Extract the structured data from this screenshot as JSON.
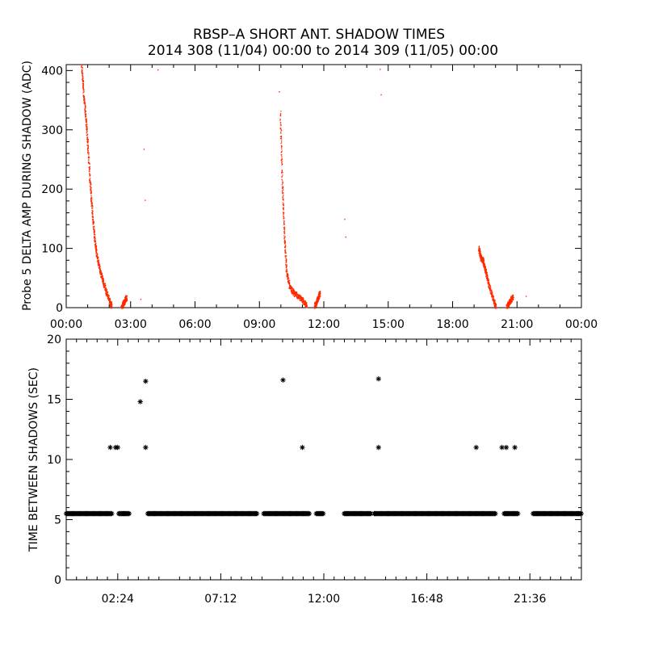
{
  "chart_data": [
    {
      "type": "scatter",
      "title": "RBSP–A SHORT ANT. SHADOW TIMES",
      "subtitle": "2014 308 (11/04) 00:00 to 2014 309 (11/05) 00:00",
      "xlabel": "",
      "ylabel": "Probe 5 DELTA AMP DURING SHADOW (ADC)",
      "xlim_hours": [
        0,
        24
      ],
      "ylim": [
        0,
        410
      ],
      "x_tick_labels": [
        "00:00",
        "03:00",
        "06:00",
        "09:00",
        "12:00",
        "15:00",
        "18:00",
        "21:00",
        "00:00"
      ],
      "y_tick_labels": [
        "0",
        "100",
        "200",
        "300",
        "400"
      ],
      "grid": false,
      "marker_color": "#ff2a00",
      "series": [
        {
          "description_x_units": "hours",
          "curves": [
            [
              [
                0.7,
                410
              ],
              [
                0.8,
                360
              ],
              [
                0.9,
                320
              ],
              [
                1.0,
                270
              ],
              [
                1.1,
                210
              ],
              [
                1.2,
                160
              ],
              [
                1.3,
                120
              ],
              [
                1.4,
                90
              ],
              [
                1.55,
                65
              ],
              [
                1.7,
                45
              ],
              [
                1.85,
                28
              ],
              [
                2.0,
                12
              ],
              [
                2.1,
                3
              ]
            ],
            [
              [
                2.55,
                0
              ],
              [
                2.65,
                8
              ],
              [
                2.75,
                15
              ],
              [
                2.8,
                18
              ]
            ],
            [
              [
                9.95,
                330
              ],
              [
                10.05,
                210
              ],
              [
                10.15,
                120
              ],
              [
                10.25,
                60
              ],
              [
                10.4,
                35
              ],
              [
                10.6,
                25
              ],
              [
                10.8,
                20
              ],
              [
                11.0,
                12
              ],
              [
                11.2,
                4
              ]
            ],
            [
              [
                11.55,
                2
              ],
              [
                11.65,
                10
              ],
              [
                11.75,
                20
              ],
              [
                11.8,
                25
              ]
            ],
            [
              [
                19.2,
                100
              ],
              [
                19.3,
                85
              ],
              [
                19.4,
                80
              ],
              [
                19.5,
                65
              ],
              [
                19.6,
                50
              ],
              [
                19.75,
                30
              ],
              [
                19.9,
                12
              ],
              [
                20.0,
                2
              ]
            ],
            [
              [
                20.5,
                0
              ],
              [
                20.6,
                8
              ],
              [
                20.7,
                14
              ],
              [
                20.8,
                18
              ]
            ]
          ],
          "isolated": [
            [
              3.45,
              15
            ],
            [
              3.6,
              268
            ],
            [
              3.65,
              182
            ],
            [
              4.25,
              402
            ],
            [
              9.9,
              365
            ],
            [
              12.95,
              150
            ],
            [
              13.0,
              120
            ],
            [
              14.6,
              403
            ],
            [
              14.65,
              360
            ],
            [
              21.4,
              20
            ]
          ]
        }
      ]
    },
    {
      "type": "scatter",
      "xlabel": "",
      "ylabel": "TIME BETWEEN SHADOWS (SEC)",
      "xlim_hours": [
        0,
        24
      ],
      "ylim": [
        0,
        20
      ],
      "x_tick_labels": [
        "02:24",
        "07:12",
        "12:00",
        "16:48",
        "21:36"
      ],
      "x_tick_hours": [
        2.4,
        7.2,
        12.0,
        16.8,
        21.6
      ],
      "y_tick_labels": [
        "0",
        "5",
        "10",
        "15",
        "20"
      ],
      "grid": false,
      "marker": "asterisk",
      "marker_color": "#000000",
      "baseline_value": 5.5,
      "baseline_segments_hours": [
        [
          0.0,
          2.15
        ],
        [
          2.45,
          2.95
        ],
        [
          3.8,
          8.9
        ],
        [
          9.2,
          11.35
        ],
        [
          11.65,
          12.0
        ],
        [
          12.95,
          14.2
        ],
        [
          14.35,
          20.0
        ],
        [
          20.4,
          21.05
        ],
        [
          21.75,
          24.0
        ]
      ],
      "points": [
        [
          2.05,
          11.0
        ],
        [
          2.3,
          11.0
        ],
        [
          2.4,
          11.0
        ],
        [
          3.45,
          14.8
        ],
        [
          3.7,
          16.5
        ],
        [
          3.7,
          11.0
        ],
        [
          10.1,
          16.6
        ],
        [
          11.0,
          11.0
        ],
        [
          14.55,
          16.7
        ],
        [
          14.55,
          11.0
        ],
        [
          19.1,
          11.0
        ],
        [
          20.3,
          11.0
        ],
        [
          20.5,
          11.0
        ],
        [
          20.9,
          11.0
        ]
      ]
    }
  ]
}
